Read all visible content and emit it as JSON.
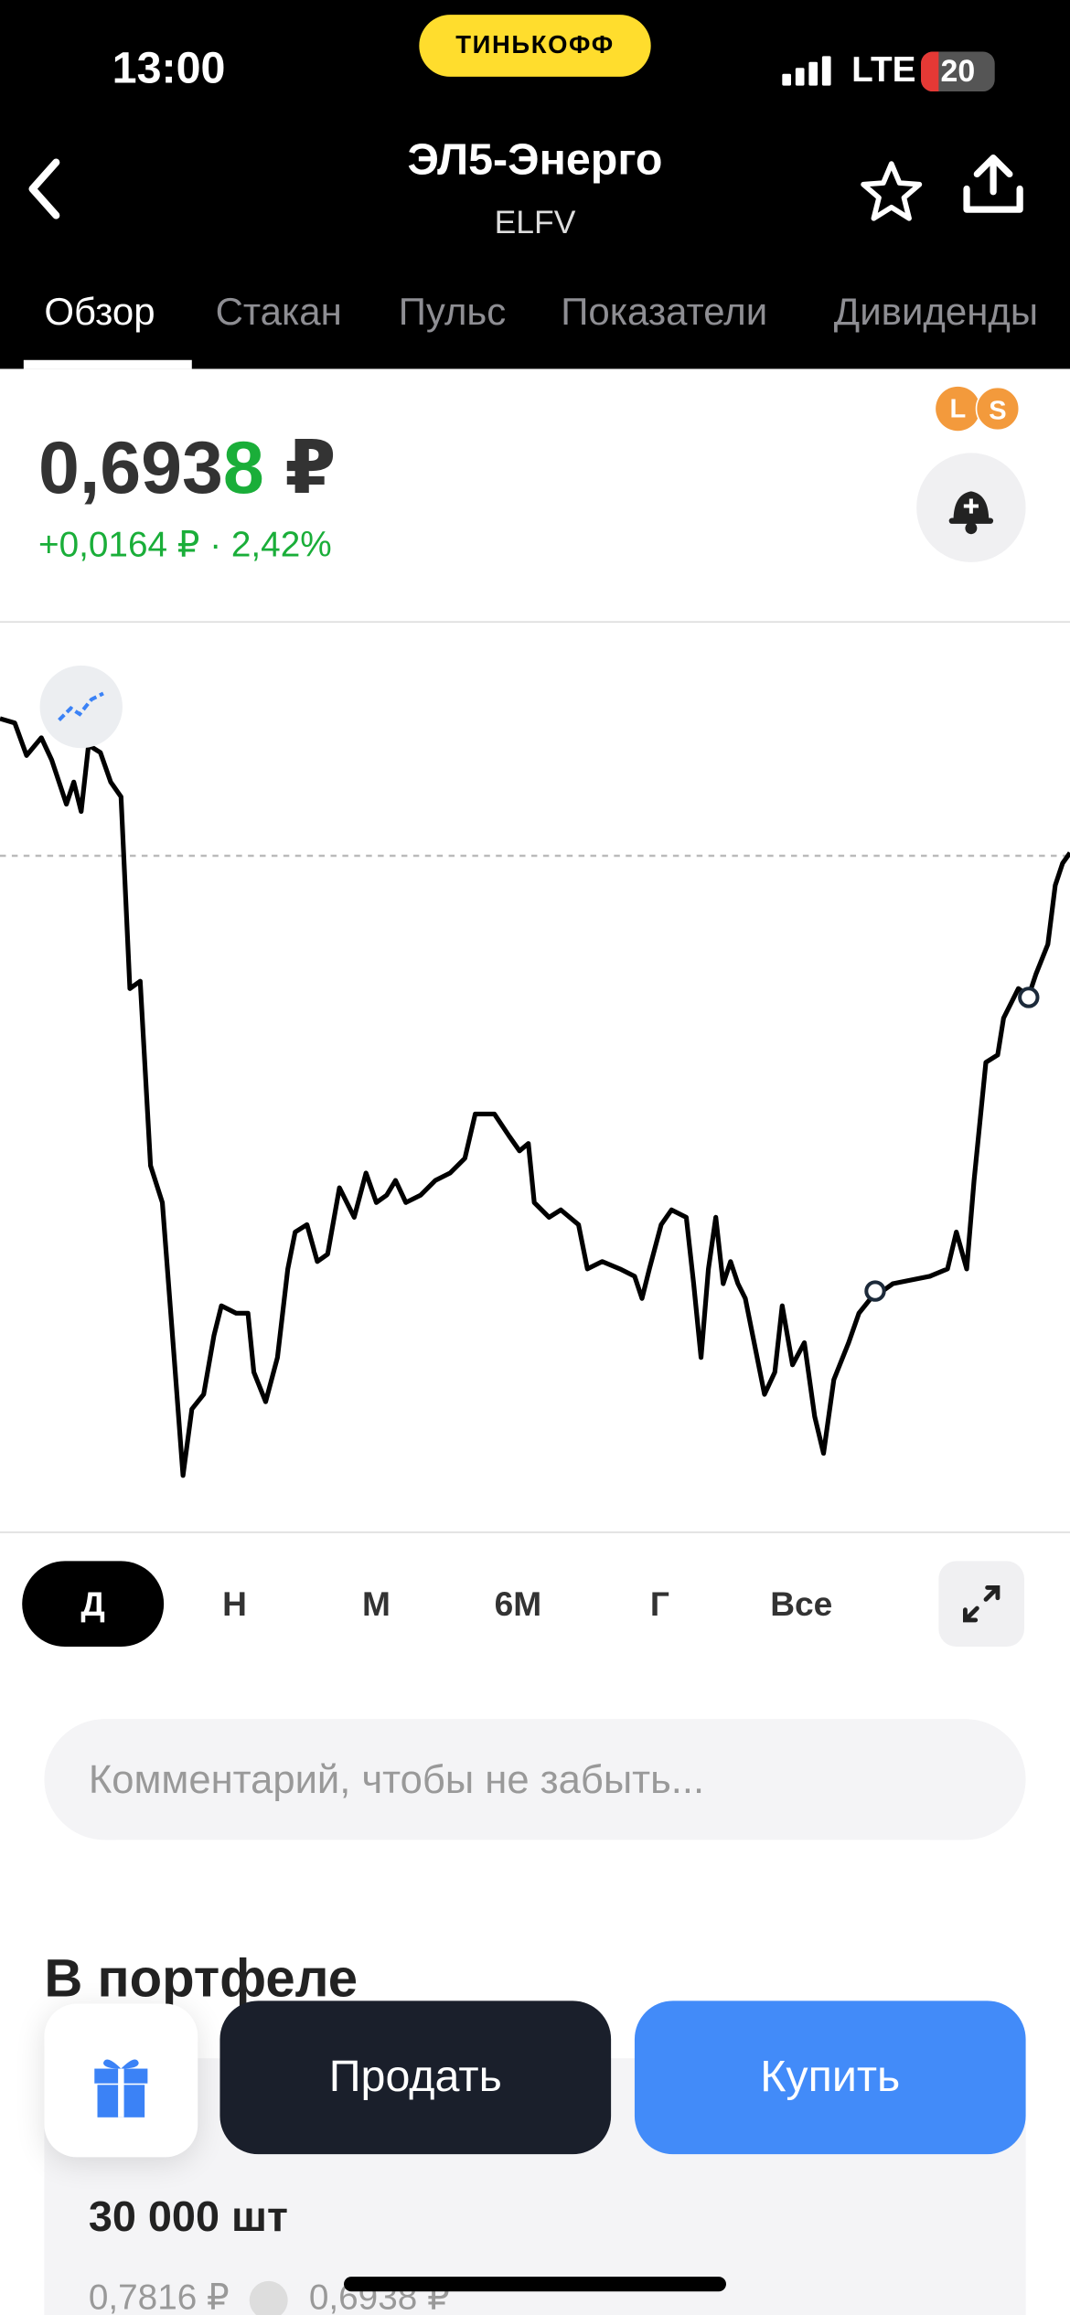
{
  "status_bar": {
    "time": "13:00",
    "brand": "ТИНЬКОФФ",
    "network": "LTE",
    "battery": "20"
  },
  "header": {
    "title": "ЭЛ5-Энерго",
    "ticker": "ELFV"
  },
  "tabs": [
    "Обзор",
    "Стакан",
    "Пульс",
    "Показатели",
    "Дивиденды"
  ],
  "price": {
    "main": "0,693",
    "last_digit": "8",
    "currency": "₽",
    "change": "+0,0164 ₽ · 2,42%"
  },
  "badges": [
    "L",
    "S"
  ],
  "periods": [
    "Д",
    "Н",
    "М",
    "6М",
    "Г",
    "Все"
  ],
  "comment_placeholder": "Комментарий, чтобы не забыть...",
  "portfolio": {
    "title": "В портфеле",
    "quantity": "30 000 шт",
    "avg_price": "0,7816 ₽",
    "current_price": "0,6938 ₽"
  },
  "actions": {
    "sell": "Продать",
    "buy": "Купить"
  }
}
